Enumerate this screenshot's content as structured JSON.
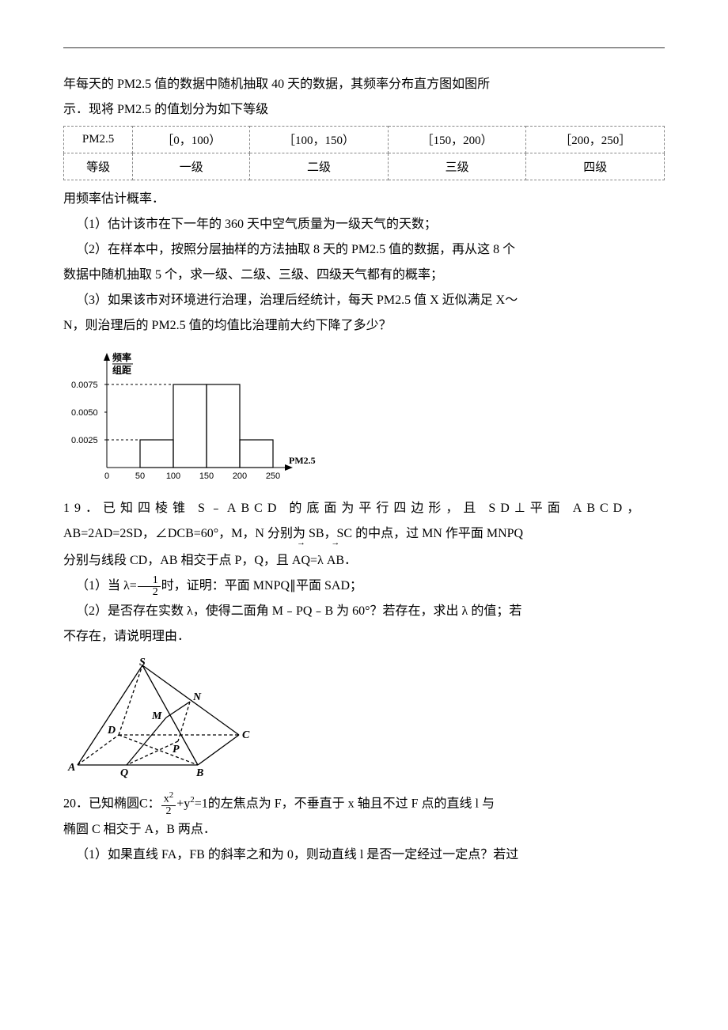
{
  "intro_line1": "年每天的 PM2.5 值的数据中随机抽取 40 天的数据，其频率分布直方图如图所",
  "intro_line2": "示．现将 PM2.5 的值划分为如下等级",
  "table": {
    "header": [
      "PM2.5",
      "［0，100）",
      "［100，150）",
      "［150，200）",
      "［200，250］"
    ],
    "row": [
      "等级",
      "一级",
      "二级",
      "三级",
      "四级"
    ]
  },
  "freq_note": "用频率估计概率．",
  "p1": "（1）估计该市在下一年的 360 天中空气质量为一级天气的天数；",
  "p2a": "（2）在样本中，按照分层抽样的方法抽取 8 天的 PM2.5 值的数据，再从这 8 个",
  "p2b": "数据中随机抽取 5 个，求一级、二级、三级、四级天气都有的概率；",
  "p3a": "（3）如果该市对环境进行治理，治理后经统计，每天 PM2.5 值 X 近似满足 X～",
  "p3b": "N，则治理后的 PM2.5 值的均值比治理前大约下降了多少？",
  "histogram": {
    "background": "#ffffff",
    "axis_color": "#000000",
    "grid_color": "#000000",
    "bar_border": "#000000",
    "y_label_top": "频率",
    "y_label_bot": "组距",
    "x_label": "PM2.5",
    "y_ticks": [
      "0.0025",
      "0.0050",
      "0.0075"
    ],
    "x_ticks": [
      "0",
      "50",
      "100",
      "150",
      "200",
      "250"
    ],
    "bars": [
      {
        "x0": 50,
        "x1": 100,
        "h": 0.0025
      },
      {
        "x0": 100,
        "x1": 150,
        "h": 0.0075
      },
      {
        "x0": 150,
        "x1": 200,
        "h": 0.0075
      },
      {
        "x0": 200,
        "x1": 250,
        "h": 0.0025
      }
    ]
  },
  "q19_l1_a": "19．已知四棱锥 S",
  "q19_l1_b": "ABCD 的底面为平行四边形，且 SD⊥平面 ABCD，",
  "q19_l2": "AB=2AD=2SD，∠DCB=60°，M，N 分别为 SB，SC 的中点，过 MN 作平面 MNPQ",
  "q19_l3_pre": "分别与线段 CD，AB 相交于点 P，Q，且",
  "q19_l3_vec1": "AQ",
  "q19_l3_eq": "=λ",
  "q19_l3_vec2": "AB",
  "q19_l3_end": "．",
  "q19_p1_pre": "（1）当 λ=",
  "q19_p1_num": "1",
  "q19_p1_den": "2",
  "q19_p1_post": "时，证明：平面 MNPQ∥平面 SAD；",
  "q19_p2a_pre": "（2）是否存在实数 λ，使得二面角 M",
  "q19_p2a_mid": "PQ",
  "q19_p2a_post": "B 为 60°？若存在，求出 λ 的值；若",
  "q19_p2b": "不存在，请说明理由．",
  "pyramid": {
    "axis_color": "#000000",
    "fill": "none",
    "labels": {
      "S": "S",
      "A": "A",
      "B": "B",
      "C": "C",
      "D": "D",
      "M": "M",
      "N": "N",
      "P": "P",
      "Q": "Q"
    }
  },
  "q20_l1_pre": "20．已知椭圆C：",
  "q20_l1_num": "x",
  "q20_l1_sup": "2",
  "q20_l1_den": "2",
  "q20_l1_mid": "+y",
  "q20_l1_sup2": "2",
  "q20_l1_post": "=1的左焦点为 F，不垂直于 x 轴且不过 F 点的直线 l 与",
  "q20_l2": "椭圆 C 相交于 A，B 两点．",
  "q20_p1": "（1）如果直线 FA，FB 的斜率之和为 0，则动直线 l 是否一定经过一定点？若过"
}
